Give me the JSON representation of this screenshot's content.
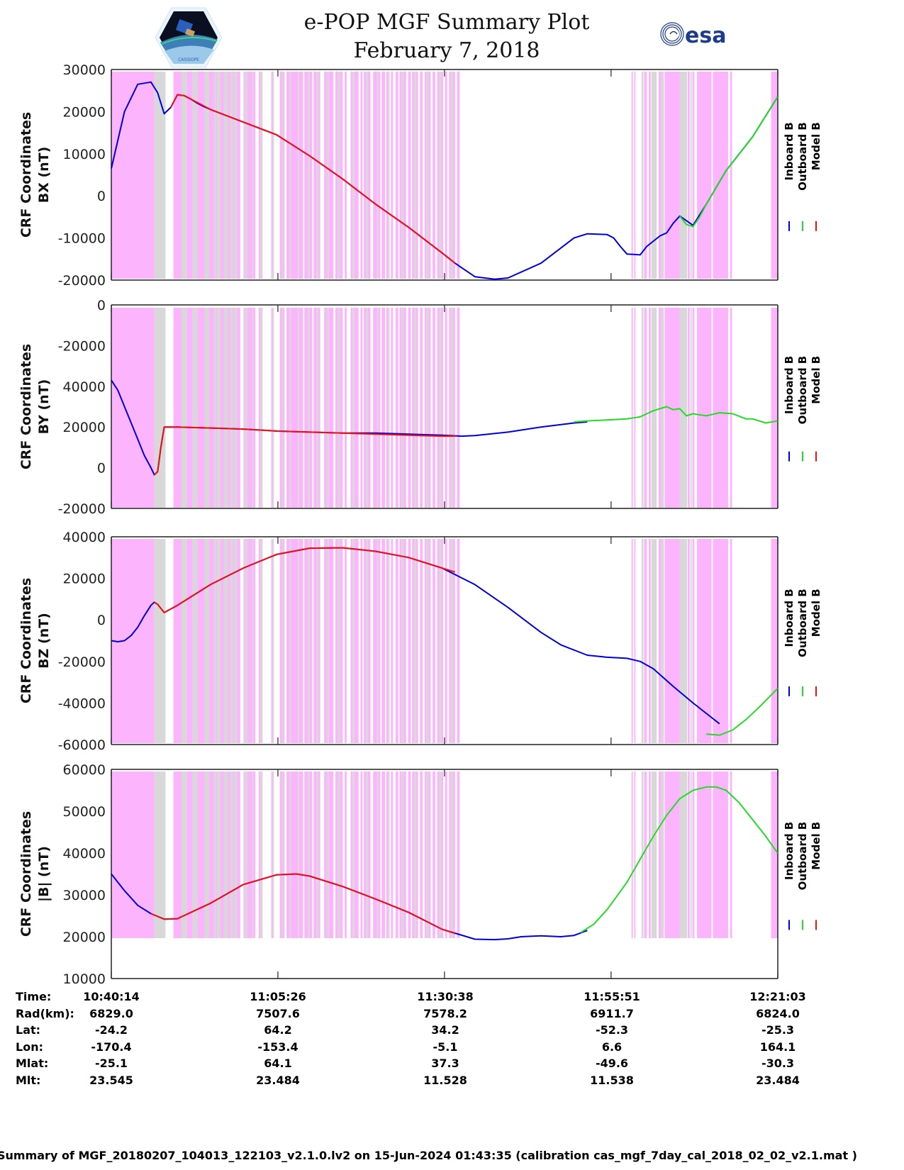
{
  "header": {
    "title_line1": "e-POP MGF Summary Plot",
    "title_line2": "February 7, 2018",
    "left_logo": "cassiope-mission-patch",
    "left_logo_text": "CASSIOPE",
    "right_logo": "esa-logo",
    "right_logo_text": "esa"
  },
  "colors": {
    "inboard": "#0000dd",
    "outboard": "#22dd22",
    "model": "#ee1111",
    "band_pink": "#fcb4fc",
    "band_gray": "#d8d8d8"
  },
  "legend": [
    {
      "label": "Inboard B",
      "color": "#0000dd"
    },
    {
      "label": "Outboard B",
      "color": "#22dd22"
    },
    {
      "label": "Model B",
      "color": "#ee1111"
    }
  ],
  "chart_data": [
    {
      "type": "line",
      "title": "",
      "ylabel_line1": "CRF Coordinates",
      "ylabel_line2": "BX (nT)",
      "ylim": [
        -20000,
        30000
      ],
      "yticks": [
        30000,
        20000,
        10000,
        0,
        -10000,
        -20000
      ],
      "ytick_labels": [
        "30000",
        "20000",
        "10000",
        "0",
        "-10000",
        "-20000"
      ],
      "xlim_minutes": [
        0,
        100.82
      ],
      "series": [
        {
          "name": "Inboard B",
          "x": [
            0,
            2,
            4,
            6,
            7,
            8,
            9,
            10,
            11,
            12,
            13,
            14,
            15,
            20,
            25,
            30,
            35,
            40,
            45,
            50,
            52,
            55,
            58,
            60,
            65,
            70,
            72,
            75,
            76,
            77,
            78,
            80,
            81,
            83,
            84,
            85,
            86,
            88,
            90,
            93,
            97,
            100.8
          ],
          "y": [
            6500,
            20000,
            26500,
            27000,
            24500,
            19500,
            21000,
            24000,
            23800,
            23000,
            22000,
            21200,
            20500,
            17500,
            14500,
            9500,
            4000,
            -2000,
            -7500,
            -13500,
            -16000,
            -19200,
            -19800,
            -19500,
            -16000,
            -10000,
            -9000,
            -9200,
            -10000,
            -12000,
            -13800,
            -14000,
            -12000,
            -9500,
            -8800,
            -6500,
            -4800,
            -7000,
            -2000,
            6000,
            14000,
            23500
          ]
        },
        {
          "name": "Outboard B",
          "x": [
            86,
            87,
            88,
            89,
            90,
            93,
            97,
            100.8
          ],
          "y": [
            -4800,
            -6800,
            -7300,
            -5000,
            -2000,
            6000,
            14000,
            23500
          ]
        },
        {
          "name": "Model B",
          "x": [
            9,
            10,
            11,
            12,
            15,
            20,
            25,
            30,
            35,
            40,
            45,
            50,
            52
          ],
          "y": [
            21000,
            24000,
            23800,
            23000,
            20500,
            17500,
            14500,
            9500,
            4000,
            -2000,
            -7500,
            -13500,
            -16000
          ]
        }
      ]
    },
    {
      "type": "line",
      "title": "",
      "ylabel_line1": "CRF Coordinates",
      "ylabel_line2": "BY (nT)",
      "yticks": [
        0,
        -20000,
        40000,
        20000,
        0,
        -20000
      ],
      "ytick_labels": [
        "0",
        "-20000",
        "40000",
        "20000",
        "0",
        "-20000"
      ],
      "ylim_display": [
        -20000,
        80000
      ],
      "series": [
        {
          "name": "Inboard B",
          "x": [
            0,
            1,
            2,
            3,
            4,
            5,
            6,
            6.5,
            7,
            7.5,
            8,
            10,
            15,
            20,
            25,
            30,
            35,
            40,
            45,
            50,
            53,
            55,
            60,
            65,
            70,
            72
          ],
          "y": [
            43000,
            38000,
            30000,
            22000,
            14000,
            6000,
            0,
            -3500,
            -2000,
            10000,
            20000,
            20000,
            19500,
            19000,
            18000,
            17500,
            17000,
            17000,
            16500,
            16000,
            15500,
            15800,
            17500,
            20000,
            22000,
            22500
          ]
        },
        {
          "name": "Outboard B",
          "x": [
            70,
            72,
            75,
            78,
            80,
            82,
            84,
            85,
            86,
            87,
            88,
            90,
            92,
            94,
            96,
            97,
            99,
            100.8
          ],
          "y": [
            22500,
            23000,
            23500,
            24000,
            25000,
            28000,
            30000,
            28500,
            29000,
            25500,
            26500,
            25500,
            27000,
            26500,
            24000,
            24000,
            22000,
            23000
          ]
        },
        {
          "name": "Model B",
          "x": [
            6.5,
            7,
            7.5,
            8,
            10,
            15,
            20,
            25,
            30,
            35,
            40,
            45,
            50,
            52
          ],
          "y": [
            -3500,
            -2000,
            10000,
            20000,
            20000,
            19500,
            19000,
            18000,
            17500,
            17000,
            16500,
            16000,
            15500,
            15500
          ]
        }
      ]
    },
    {
      "type": "line",
      "title": "",
      "ylabel_line1": "CRF Coordinates",
      "ylabel_line2": "BZ (nT)",
      "ylim": [
        -60000,
        40000
      ],
      "yticks": [
        40000,
        20000,
        0,
        -20000,
        -40000,
        -60000
      ],
      "ytick_labels": [
        "40000",
        "20000",
        "0",
        "-20000",
        "-40000",
        "-60000"
      ],
      "series": [
        {
          "name": "Inboard B",
          "x": [
            0,
            1,
            2,
            3,
            4,
            5,
            6,
            6.5,
            7,
            8,
            10,
            15,
            20,
            25,
            30,
            35,
            40,
            45,
            50,
            55,
            60,
            65,
            68,
            72,
            75,
            78,
            80,
            82,
            85,
            88,
            90,
            92
          ],
          "y": [
            -10000,
            -10500,
            -10000,
            -7500,
            -3500,
            2000,
            7000,
            8500,
            7500,
            3500,
            7000,
            17000,
            25000,
            31500,
            34500,
            34700,
            33000,
            30000,
            25000,
            17000,
            6000,
            -6000,
            -12000,
            -17000,
            -18000,
            -18500,
            -20000,
            -23500,
            -32000,
            -40000,
            -45000,
            -50000
          ]
        },
        {
          "name": "Outboard B",
          "x": [
            90,
            92,
            94,
            96,
            98,
            100.8
          ],
          "y": [
            -55000,
            -55500,
            -53000,
            -48000,
            -42000,
            -33000
          ]
        },
        {
          "name": "Model B",
          "x": [
            6.5,
            7,
            8,
            10,
            15,
            20,
            25,
            30,
            35,
            40,
            45,
            50,
            52
          ],
          "y": [
            8500,
            7500,
            3500,
            7000,
            17000,
            25000,
            31500,
            34500,
            34700,
            33000,
            30000,
            25000,
            23000
          ]
        }
      ]
    },
    {
      "type": "line",
      "title": "",
      "ylabel_line1": "CRF Coordinates",
      "ylabel_line2": "|B| (nT)",
      "ylim": [
        10000,
        60000
      ],
      "yticks": [
        60000,
        50000,
        40000,
        30000,
        20000,
        10000
      ],
      "ytick_labels": [
        "60000",
        "50000",
        "40000",
        "30000",
        "20000",
        "10000"
      ],
      "series": [
        {
          "name": "Inboard B",
          "x": [
            0,
            2,
            4,
            6,
            8,
            10,
            15,
            20,
            25,
            28,
            30,
            35,
            40,
            45,
            50,
            55,
            58,
            60,
            62,
            65,
            68,
            70,
            72
          ],
          "y": [
            35000,
            31000,
            27500,
            25500,
            24200,
            24300,
            28000,
            32500,
            34800,
            35000,
            34500,
            32000,
            29000,
            25800,
            21800,
            19400,
            19300,
            19500,
            20000,
            20200,
            20000,
            20300,
            21500
          ]
        },
        {
          "name": "Outboard B",
          "x": [
            71,
            73,
            75,
            78,
            80,
            82,
            84,
            86,
            88,
            90,
            91.5,
            93,
            95,
            97,
            99,
            100.8
          ],
          "y": [
            21000,
            23000,
            26500,
            33000,
            38500,
            44000,
            49000,
            53000,
            55000,
            55800,
            55800,
            55000,
            52000,
            48000,
            44000,
            40000
          ]
        },
        {
          "name": "Model B",
          "x": [
            6,
            8,
            10,
            15,
            20,
            25,
            28,
            30,
            35,
            40,
            45,
            50,
            52
          ],
          "y": [
            25500,
            24200,
            24300,
            28000,
            32500,
            34800,
            35000,
            34500,
            32000,
            29000,
            25800,
            21800,
            20800
          ]
        }
      ]
    }
  ],
  "bands": {
    "pink": [
      [
        0,
        6.5
      ],
      [
        9.4,
        11.2
      ],
      [
        11.4,
        12.3
      ],
      [
        13,
        14.1
      ],
      [
        14.8,
        15.5
      ],
      [
        15.8,
        16
      ],
      [
        16.5,
        17
      ],
      [
        17.6,
        18
      ],
      [
        18.4,
        18.6
      ],
      [
        19,
        19.5
      ],
      [
        20,
        20.2
      ],
      [
        20.6,
        21.3
      ],
      [
        21.5,
        21.8
      ],
      [
        22.3,
        22.6
      ],
      [
        24.2,
        24.4
      ],
      [
        25.5,
        26.2
      ],
      [
        26.5,
        27
      ],
      [
        27.2,
        28.2
      ],
      [
        28.4,
        29
      ],
      [
        29.2,
        29.7
      ],
      [
        30,
        30.4
      ],
      [
        30.6,
        31
      ],
      [
        31.3,
        31.6
      ],
      [
        32.2,
        32.6
      ],
      [
        32.9,
        33.6
      ],
      [
        33.9,
        34.3
      ],
      [
        34.6,
        35
      ],
      [
        35.3,
        35.6
      ],
      [
        36.2,
        36.5
      ],
      [
        36.8,
        37.4
      ],
      [
        37.7,
        38
      ],
      [
        38.2,
        38.5
      ],
      [
        38.8,
        39.2
      ],
      [
        39.6,
        40.2
      ],
      [
        40.4,
        40.7
      ],
      [
        40.9,
        41.4
      ],
      [
        41.6,
        41.9
      ],
      [
        42.3,
        42.6
      ],
      [
        43,
        43.4
      ],
      [
        43.6,
        43.9
      ],
      [
        44.2,
        44.6
      ],
      [
        44.9,
        45.3
      ],
      [
        45.5,
        45.8
      ],
      [
        46.1,
        46.4
      ],
      [
        46.7,
        47.1
      ],
      [
        47.4,
        47.7
      ],
      [
        48,
        48.3
      ],
      [
        48.6,
        49
      ],
      [
        49.3,
        49.6
      ],
      [
        49.9,
        50.2
      ],
      [
        50.5,
        50.8
      ],
      [
        51.1,
        51.4
      ],
      [
        51.7,
        52
      ],
      [
        52.3,
        52.7
      ],
      [
        78.7,
        78.9
      ],
      [
        79.1,
        79.3
      ],
      [
        80.6,
        81
      ],
      [
        81.3,
        81.6
      ],
      [
        82.8,
        83.2
      ],
      [
        83.7,
        86
      ],
      [
        86.3,
        86.5
      ],
      [
        87.2,
        87.5
      ],
      [
        87.9,
        88.2
      ],
      [
        88.6,
        90.8
      ],
      [
        91,
        93.3
      ],
      [
        93.6,
        93.9
      ],
      [
        99.8,
        100.8
      ]
    ],
    "gray": [
      [
        6.5,
        8.2
      ],
      [
        10.6,
        11.4
      ],
      [
        12.3,
        13
      ],
      [
        14.1,
        14.8
      ],
      [
        15.5,
        15.8
      ],
      [
        16,
        16.5
      ],
      [
        17,
        17.6
      ],
      [
        18,
        18.4
      ],
      [
        18.6,
        19
      ],
      [
        20.2,
        20.6
      ],
      [
        21.3,
        21.5
      ],
      [
        22.6,
        22.9
      ],
      [
        24.4,
        24.6
      ],
      [
        25.8,
        26
      ],
      [
        27,
        27.2
      ],
      [
        28.2,
        28.4
      ],
      [
        29.7,
        30
      ],
      [
        31,
        31.3
      ],
      [
        32.6,
        32.9
      ],
      [
        34.3,
        34.6
      ],
      [
        36.5,
        36.8
      ],
      [
        38.5,
        38.8
      ],
      [
        40.2,
        40.4
      ],
      [
        41.9,
        42.1
      ],
      [
        43.9,
        44.2
      ],
      [
        45.8,
        46.1
      ],
      [
        47.7,
        48
      ],
      [
        49.6,
        49.9
      ],
      [
        51.4,
        51.7
      ],
      [
        80.2,
        80.5
      ],
      [
        81.7,
        82.5
      ],
      [
        83.2,
        83.6
      ],
      [
        86,
        87.1
      ],
      [
        87.6,
        87.8
      ]
    ]
  },
  "x_axis": {
    "tick_times": [
      "10:40:14",
      "11:05:26",
      "11:30:38",
      "11:55:51",
      "12:21:03"
    ]
  },
  "ephemeris": {
    "row_labels": [
      "Time:",
      "Rad(km):",
      "Lat:",
      "Lon:",
      "Mlat:",
      "Mlt:"
    ],
    "columns": [
      [
        "10:40:14",
        "6829.0",
        "-24.2",
        "-170.4",
        "-25.1",
        "23.545"
      ],
      [
        "11:05:26",
        "7507.6",
        "64.2",
        "-153.4",
        "64.1",
        "23.484"
      ],
      [
        "11:30:38",
        "7578.2",
        "34.2",
        "-5.1",
        "37.3",
        "11.528"
      ],
      [
        "11:55:51",
        "6911.7",
        "-52.3",
        "6.6",
        "-49.6",
        "11.538"
      ],
      [
        "12:21:03",
        "6824.0",
        "-25.3",
        "164.1",
        "-30.3",
        "23.484"
      ]
    ]
  },
  "footer": "Summary of MGF_20180207_104013_122103_v2.1.0.lv2 on 15-Jun-2024 01:43:35 (calibration cas_mgf_7day_cal_2018_02_02_v2.1.mat )"
}
